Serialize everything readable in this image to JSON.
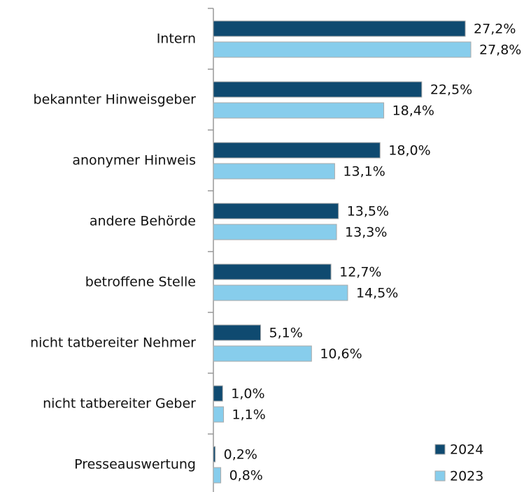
{
  "chart_data": {
    "type": "bar",
    "orientation": "horizontal",
    "categories": [
      "Intern",
      "bekannter Hinweisgeber",
      "anonymer Hinweis",
      "andere Behörde",
      "betroffene Stelle",
      "nicht tatbereiter Nehmer",
      "nicht tatbereiter Geber",
      "Presseauswertung"
    ],
    "series": [
      {
        "name": "2024",
        "color": "#0f4a70",
        "values": [
          27.2,
          22.5,
          18.0,
          13.5,
          12.7,
          5.1,
          1.0,
          0.2
        ],
        "value_labels": [
          "27,2%",
          "22,5%",
          "18,0%",
          "13,5%",
          "12,7%",
          "5,1%",
          "1,0%",
          "0,2%"
        ]
      },
      {
        "name": "2023",
        "color": "#87cdec",
        "values": [
          27.8,
          18.4,
          13.1,
          13.3,
          14.5,
          10.6,
          1.1,
          0.8
        ],
        "value_labels": [
          "27,8%",
          "18,4%",
          "13,1%",
          "13,3%",
          "14,5%",
          "10,6%",
          "1,1%",
          "0,8%"
        ]
      }
    ],
    "legend": "bottom-right"
  }
}
